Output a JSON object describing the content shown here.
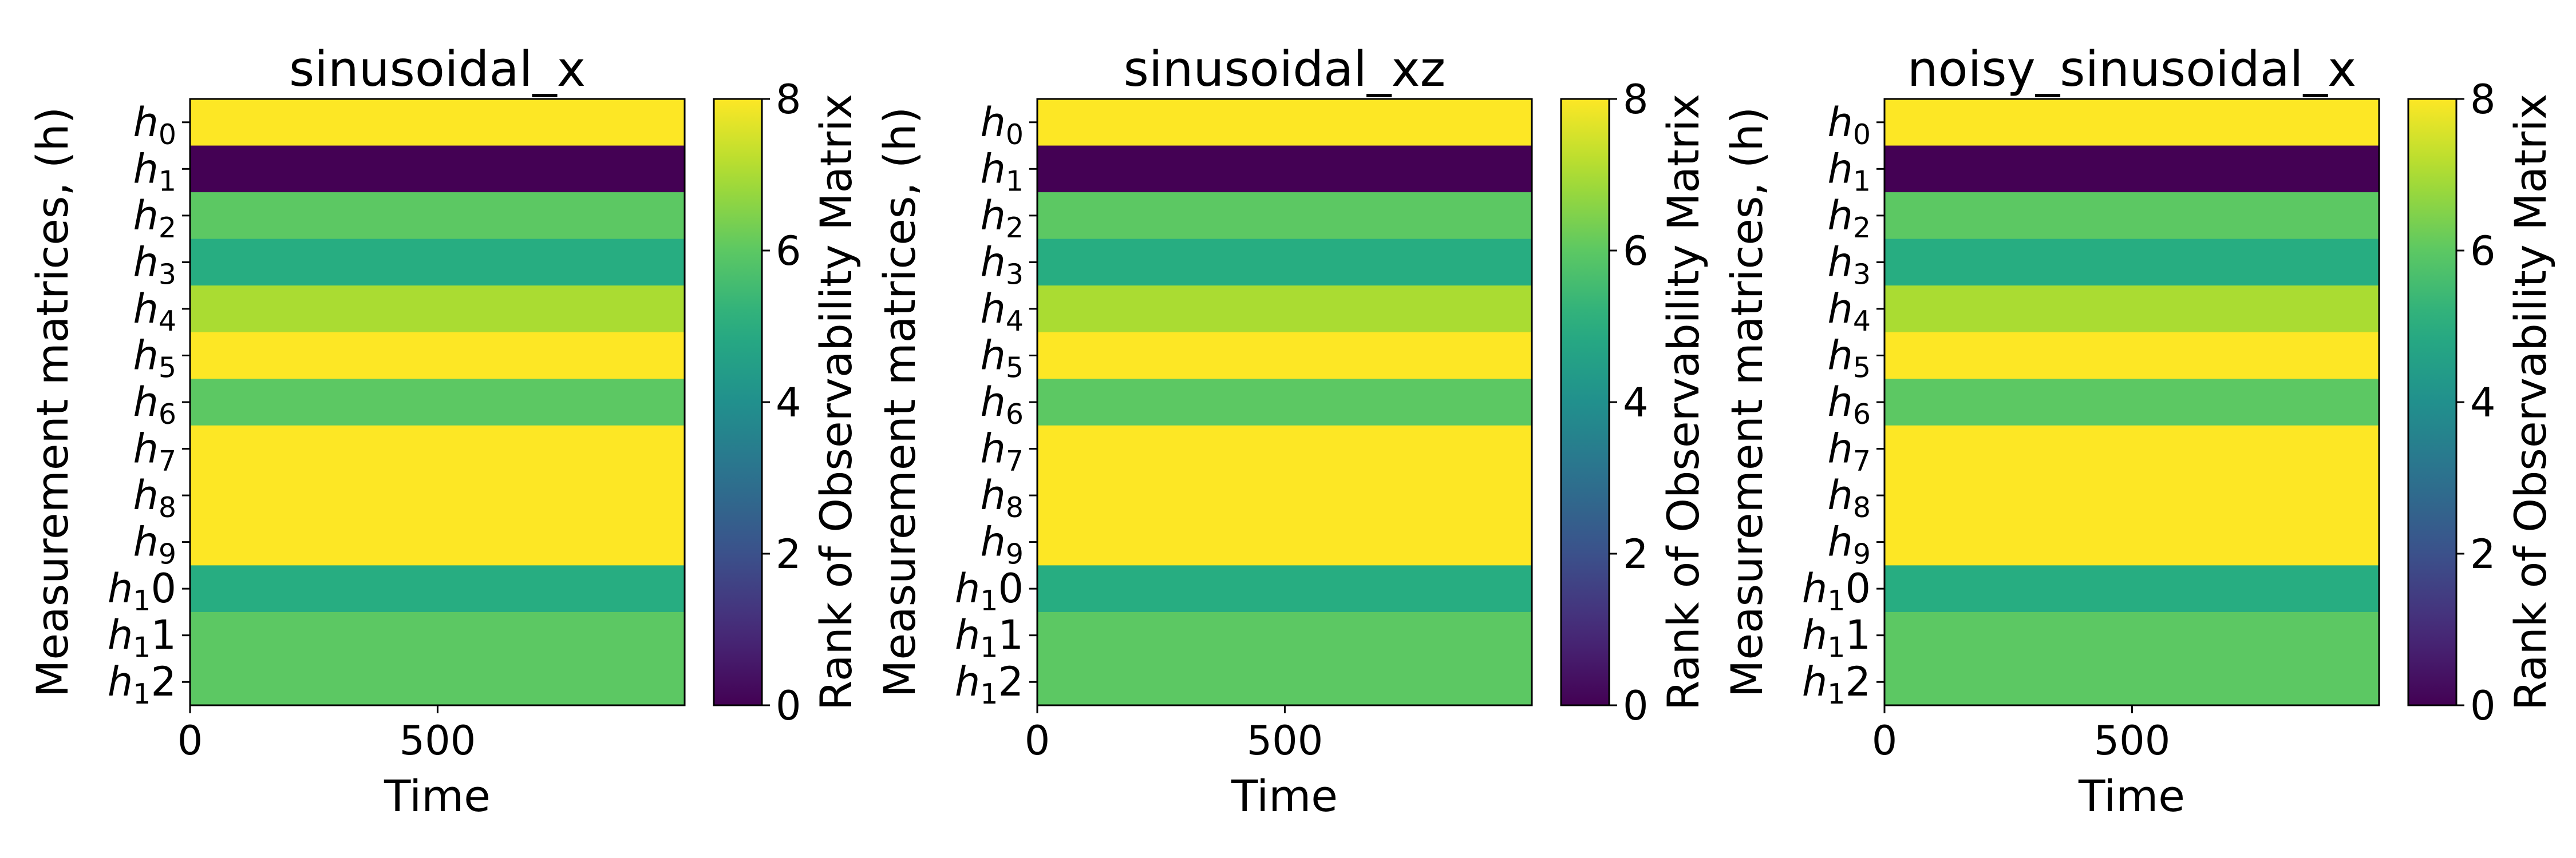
{
  "chart_data": [
    {
      "type": "heatmap",
      "title": "sinusoidal_x",
      "xlabel": "Time",
      "ylabel": "Measurement matrices, (h)",
      "colorbar_label": "Rank of Observability Matrix",
      "colormap": "viridis",
      "x_range": [
        0,
        999
      ],
      "x_ticks": [
        0,
        500
      ],
      "color_range": [
        0,
        8
      ],
      "colorbar_ticks": [
        0,
        2,
        4,
        6,
        8
      ],
      "rows": [
        {
          "base": "h",
          "sub": "0",
          "suffix": "",
          "value": 8
        },
        {
          "base": "h",
          "sub": "1",
          "suffix": "",
          "value": 0
        },
        {
          "base": "h",
          "sub": "2",
          "suffix": "",
          "value": 6
        },
        {
          "base": "h",
          "sub": "3",
          "suffix": "",
          "value": 5
        },
        {
          "base": "h",
          "sub": "4",
          "suffix": "",
          "value": 7
        },
        {
          "base": "h",
          "sub": "5",
          "suffix": "",
          "value": 8
        },
        {
          "base": "h",
          "sub": "6",
          "suffix": "",
          "value": 6
        },
        {
          "base": "h",
          "sub": "7",
          "suffix": "",
          "value": 8
        },
        {
          "base": "h",
          "sub": "8",
          "suffix": "",
          "value": 8
        },
        {
          "base": "h",
          "sub": "9",
          "suffix": "",
          "value": 8
        },
        {
          "base": "h",
          "sub": "1",
          "suffix": "0",
          "value": 5
        },
        {
          "base": "h",
          "sub": "1",
          "suffix": "1",
          "value": 6
        },
        {
          "base": "h",
          "sub": "1",
          "suffix": "2",
          "value": 6
        }
      ]
    },
    {
      "type": "heatmap",
      "title": "sinusoidal_xz",
      "xlabel": "Time",
      "ylabel": "Measurement matrices, (h)",
      "colorbar_label": "Rank of Observability Matrix",
      "colormap": "viridis",
      "x_range": [
        0,
        999
      ],
      "x_ticks": [
        0,
        500
      ],
      "color_range": [
        0,
        8
      ],
      "colorbar_ticks": [
        0,
        2,
        4,
        6,
        8
      ],
      "rows": [
        {
          "base": "h",
          "sub": "0",
          "suffix": "",
          "value": 8
        },
        {
          "base": "h",
          "sub": "1",
          "suffix": "",
          "value": 0
        },
        {
          "base": "h",
          "sub": "2",
          "suffix": "",
          "value": 6
        },
        {
          "base": "h",
          "sub": "3",
          "suffix": "",
          "value": 5
        },
        {
          "base": "h",
          "sub": "4",
          "suffix": "",
          "value": 7
        },
        {
          "base": "h",
          "sub": "5",
          "suffix": "",
          "value": 8
        },
        {
          "base": "h",
          "sub": "6",
          "suffix": "",
          "value": 6
        },
        {
          "base": "h",
          "sub": "7",
          "suffix": "",
          "value": 8
        },
        {
          "base": "h",
          "sub": "8",
          "suffix": "",
          "value": 8
        },
        {
          "base": "h",
          "sub": "9",
          "suffix": "",
          "value": 8
        },
        {
          "base": "h",
          "sub": "1",
          "suffix": "0",
          "value": 5
        },
        {
          "base": "h",
          "sub": "1",
          "suffix": "1",
          "value": 6
        },
        {
          "base": "h",
          "sub": "1",
          "suffix": "2",
          "value": 6
        }
      ]
    },
    {
      "type": "heatmap",
      "title": "noisy_sinusoidal_x",
      "xlabel": "Time",
      "ylabel": "Measurement matrices, (h)",
      "colorbar_label": "Rank of Observability Matrix",
      "colormap": "viridis",
      "x_range": [
        0,
        999
      ],
      "x_ticks": [
        0,
        500
      ],
      "color_range": [
        0,
        8
      ],
      "colorbar_ticks": [
        0,
        2,
        4,
        6,
        8
      ],
      "rows": [
        {
          "base": "h",
          "sub": "0",
          "suffix": "",
          "value": 8
        },
        {
          "base": "h",
          "sub": "1",
          "suffix": "",
          "value": 0
        },
        {
          "base": "h",
          "sub": "2",
          "suffix": "",
          "value": 6
        },
        {
          "base": "h",
          "sub": "3",
          "suffix": "",
          "value": 5
        },
        {
          "base": "h",
          "sub": "4",
          "suffix": "",
          "value": 7
        },
        {
          "base": "h",
          "sub": "5",
          "suffix": "",
          "value": 8
        },
        {
          "base": "h",
          "sub": "6",
          "suffix": "",
          "value": 6
        },
        {
          "base": "h",
          "sub": "7",
          "suffix": "",
          "value": 8
        },
        {
          "base": "h",
          "sub": "8",
          "suffix": "",
          "value": 8
        },
        {
          "base": "h",
          "sub": "9",
          "suffix": "",
          "value": 8
        },
        {
          "base": "h",
          "sub": "1",
          "suffix": "0",
          "value": 5
        },
        {
          "base": "h",
          "sub": "1",
          "suffix": "1",
          "value": 6
        },
        {
          "base": "h",
          "sub": "1",
          "suffix": "2",
          "value": 6
        }
      ]
    }
  ]
}
